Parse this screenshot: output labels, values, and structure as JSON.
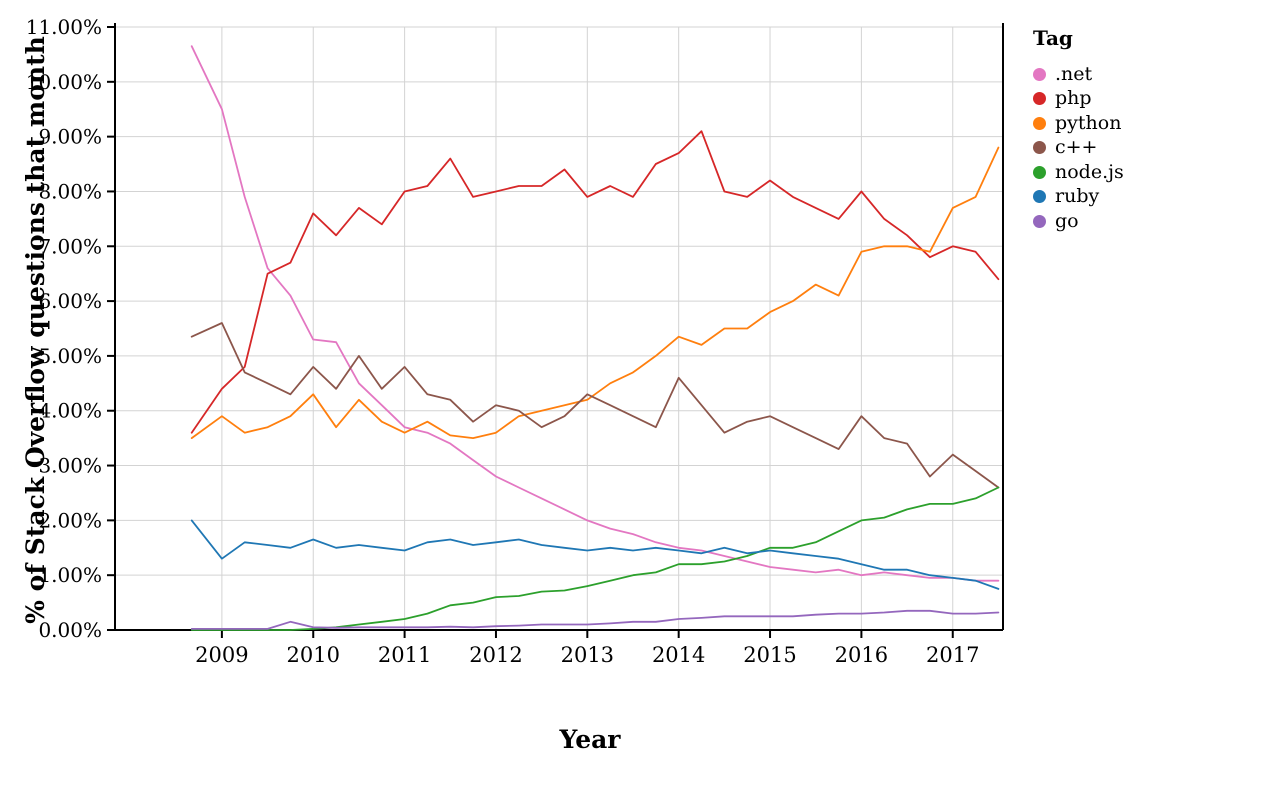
{
  "chart_data": {
    "type": "line",
    "xlabel": "Year",
    "ylabel": "% of Stack Overflow questions that month",
    "legend_title": "Tag",
    "legend_position": "right",
    "grid": true,
    "xlim": [
      2007.83,
      2017.55
    ],
    "ylim": [
      0,
      11
    ],
    "x_ticks": [
      2009,
      2010,
      2011,
      2012,
      2013,
      2014,
      2015,
      2016,
      2017
    ],
    "x_tick_labels": [
      "2009",
      "2010",
      "2011",
      "2012",
      "2013",
      "2014",
      "2015",
      "2016",
      "2017"
    ],
    "y_ticks": [
      0,
      1,
      2,
      3,
      4,
      5,
      6,
      7,
      8,
      9,
      10,
      11
    ],
    "y_tick_labels": [
      "0.00%",
      "1.00%",
      "2.00%",
      "3.00%",
      "4.00%",
      "5.00%",
      "6.00%",
      "7.00%",
      "8.00%",
      "9.00%",
      "10.00%",
      "11.00%"
    ],
    "x": [
      2008.67,
      2009.0,
      2009.25,
      2009.5,
      2009.75,
      2010.0,
      2010.25,
      2010.5,
      2010.75,
      2011.0,
      2011.25,
      2011.5,
      2011.75,
      2012.0,
      2012.25,
      2012.5,
      2012.75,
      2013.0,
      2013.25,
      2013.5,
      2013.75,
      2014.0,
      2014.25,
      2014.5,
      2014.75,
      2015.0,
      2015.25,
      2015.5,
      2015.75,
      2016.0,
      2016.25,
      2016.5,
      2016.75,
      2017.0,
      2017.25,
      2017.5
    ],
    "series": [
      {
        "name": ".net",
        "color": "#e377c2",
        "values": [
          10.65,
          9.5,
          7.9,
          6.6,
          6.1,
          5.3,
          5.25,
          4.5,
          4.1,
          3.7,
          3.6,
          3.4,
          3.1,
          2.8,
          2.6,
          2.4,
          2.2,
          2.0,
          1.85,
          1.75,
          1.6,
          1.5,
          1.45,
          1.35,
          1.25,
          1.15,
          1.1,
          1.05,
          1.1,
          1.0,
          1.05,
          1.0,
          0.95,
          0.95,
          0.9,
          0.9
        ]
      },
      {
        "name": "php",
        "color": "#d62728",
        "values": [
          3.6,
          4.4,
          4.8,
          6.5,
          6.7,
          7.6,
          7.2,
          7.7,
          7.4,
          8.0,
          8.1,
          8.6,
          7.9,
          8.0,
          8.1,
          8.1,
          8.4,
          7.9,
          8.1,
          7.9,
          8.5,
          8.7,
          9.1,
          8.0,
          7.9,
          8.2,
          7.9,
          7.7,
          7.5,
          8.0,
          7.5,
          7.2,
          6.8,
          7.0,
          6.9,
          6.4
        ]
      },
      {
        "name": "python",
        "color": "#ff7f0e",
        "values": [
          3.5,
          3.9,
          3.6,
          3.7,
          3.9,
          4.3,
          3.7,
          4.2,
          3.8,
          3.6,
          3.8,
          3.55,
          3.5,
          3.6,
          3.9,
          4.0,
          4.1,
          4.2,
          4.5,
          4.7,
          5.0,
          5.35,
          5.2,
          5.5,
          5.5,
          5.8,
          6.0,
          6.3,
          6.1,
          6.9,
          7.0,
          7.0,
          6.9,
          7.7,
          7.9,
          8.8
        ]
      },
      {
        "name": "c++",
        "color": "#8c564b",
        "values": [
          5.35,
          5.6,
          4.7,
          4.5,
          4.3,
          4.8,
          4.4,
          5.0,
          4.4,
          4.8,
          4.3,
          4.2,
          3.8,
          4.1,
          4.0,
          3.7,
          3.9,
          4.3,
          4.1,
          3.9,
          3.7,
          4.6,
          4.1,
          3.6,
          3.8,
          3.9,
          3.7,
          3.5,
          3.3,
          3.9,
          3.5,
          3.4,
          2.8,
          3.2,
          2.9,
          2.6
        ]
      },
      {
        "name": "node.js",
        "color": "#2ca02c",
        "values": [
          0.0,
          0.0,
          0.0,
          0.0,
          0.0,
          0.02,
          0.05,
          0.1,
          0.15,
          0.2,
          0.3,
          0.45,
          0.5,
          0.6,
          0.62,
          0.7,
          0.72,
          0.8,
          0.9,
          1.0,
          1.05,
          1.2,
          1.2,
          1.25,
          1.35,
          1.5,
          1.5,
          1.6,
          1.8,
          2.0,
          2.05,
          2.2,
          2.3,
          2.3,
          2.4,
          2.6
        ]
      },
      {
        "name": "ruby",
        "color": "#1f77b4",
        "values": [
          2.0,
          1.3,
          1.6,
          1.55,
          1.5,
          1.65,
          1.5,
          1.55,
          1.5,
          1.45,
          1.6,
          1.65,
          1.55,
          1.6,
          1.65,
          1.55,
          1.5,
          1.45,
          1.5,
          1.45,
          1.5,
          1.45,
          1.4,
          1.5,
          1.4,
          1.45,
          1.4,
          1.35,
          1.3,
          1.2,
          1.1,
          1.1,
          1.0,
          0.95,
          0.9,
          0.75
        ]
      },
      {
        "name": "go",
        "color": "#9467bd",
        "values": [
          0.02,
          0.02,
          0.02,
          0.02,
          0.15,
          0.05,
          0.04,
          0.05,
          0.05,
          0.05,
          0.05,
          0.06,
          0.05,
          0.07,
          0.08,
          0.1,
          0.1,
          0.1,
          0.12,
          0.15,
          0.15,
          0.2,
          0.22,
          0.25,
          0.25,
          0.25,
          0.25,
          0.28,
          0.3,
          0.3,
          0.32,
          0.35,
          0.35,
          0.3,
          0.3,
          0.32
        ]
      }
    ]
  }
}
